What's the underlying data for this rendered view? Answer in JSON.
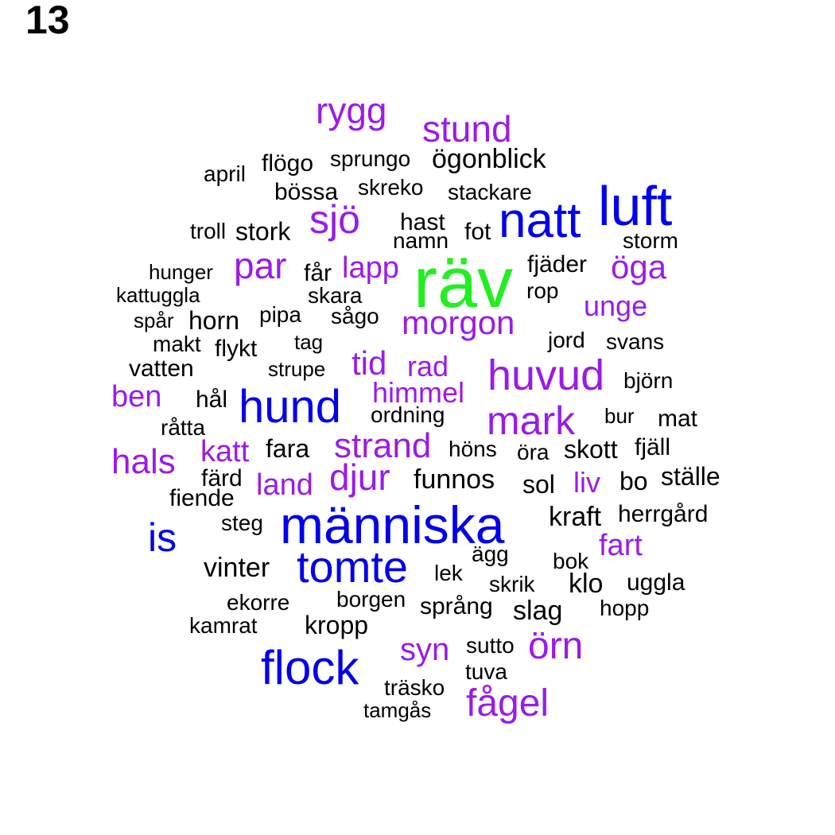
{
  "page_number": "13",
  "colors": {
    "green": "#22ee22",
    "blue": "#0000ee",
    "purple": "#9a1be8",
    "black": "#000000"
  },
  "words": [
    {
      "text": "räv",
      "color": "green"
    },
    {
      "text": "människa",
      "color": "blue"
    },
    {
      "text": "luft",
      "color": "blue"
    },
    {
      "text": "natt",
      "color": "blue"
    },
    {
      "text": "hund",
      "color": "blue"
    },
    {
      "text": "flock",
      "color": "blue"
    },
    {
      "text": "tomte",
      "color": "blue"
    },
    {
      "text": "is",
      "color": "blue"
    },
    {
      "text": "huvud",
      "color": "purple"
    },
    {
      "text": "mark",
      "color": "purple"
    },
    {
      "text": "djur",
      "color": "purple"
    },
    {
      "text": "strand",
      "color": "purple"
    },
    {
      "text": "morgon",
      "color": "purple"
    },
    {
      "text": "fågel",
      "color": "purple"
    },
    {
      "text": "örn",
      "color": "purple"
    },
    {
      "text": "sjö",
      "color": "purple"
    },
    {
      "text": "par",
      "color": "purple"
    },
    {
      "text": "stund",
      "color": "purple"
    },
    {
      "text": "rygg",
      "color": "purple"
    },
    {
      "text": "öga",
      "color": "purple"
    },
    {
      "text": "hals",
      "color": "purple"
    },
    {
      "text": "ben",
      "color": "purple"
    },
    {
      "text": "lapp",
      "color": "purple"
    },
    {
      "text": "tid",
      "color": "purple"
    },
    {
      "text": "land",
      "color": "purple"
    },
    {
      "text": "himmel",
      "color": "purple"
    },
    {
      "text": "katt",
      "color": "purple"
    },
    {
      "text": "unge",
      "color": "purple"
    },
    {
      "text": "rad",
      "color": "purple"
    },
    {
      "text": "syn",
      "color": "purple"
    },
    {
      "text": "fart",
      "color": "purple"
    },
    {
      "text": "liv",
      "color": "purple"
    },
    {
      "text": "ögonblick",
      "color": "black"
    },
    {
      "text": "april",
      "color": "black"
    },
    {
      "text": "flögo",
      "color": "black"
    },
    {
      "text": "sprungo",
      "color": "black"
    },
    {
      "text": "bössa",
      "color": "black"
    },
    {
      "text": "skreko",
      "color": "black"
    },
    {
      "text": "stackare",
      "color": "black"
    },
    {
      "text": "troll",
      "color": "black"
    },
    {
      "text": "stork",
      "color": "black"
    },
    {
      "text": "hast",
      "color": "black"
    },
    {
      "text": "namn",
      "color": "black"
    },
    {
      "text": "fot",
      "color": "black"
    },
    {
      "text": "storm",
      "color": "black"
    },
    {
      "text": "hunger",
      "color": "black"
    },
    {
      "text": "får",
      "color": "black"
    },
    {
      "text": "fjäder",
      "color": "black"
    },
    {
      "text": "kattuggla",
      "color": "black"
    },
    {
      "text": "skara",
      "color": "black"
    },
    {
      "text": "rop",
      "color": "black"
    },
    {
      "text": "spår",
      "color": "black"
    },
    {
      "text": "horn",
      "color": "black"
    },
    {
      "text": "pipa",
      "color": "black"
    },
    {
      "text": "sågo",
      "color": "black"
    },
    {
      "text": "makt",
      "color": "black"
    },
    {
      "text": "flykt",
      "color": "black"
    },
    {
      "text": "tag",
      "color": "black"
    },
    {
      "text": "jord",
      "color": "black"
    },
    {
      "text": "svans",
      "color": "black"
    },
    {
      "text": "vatten",
      "color": "black"
    },
    {
      "text": "strupe",
      "color": "black"
    },
    {
      "text": "björn",
      "color": "black"
    },
    {
      "text": "hål",
      "color": "black"
    },
    {
      "text": "ordning",
      "color": "black"
    },
    {
      "text": "bur",
      "color": "black"
    },
    {
      "text": "mat",
      "color": "black"
    },
    {
      "text": "råtta",
      "color": "black"
    },
    {
      "text": "fara",
      "color": "black"
    },
    {
      "text": "höns",
      "color": "black"
    },
    {
      "text": "öra",
      "color": "black"
    },
    {
      "text": "skott",
      "color": "black"
    },
    {
      "text": "fjäll",
      "color": "black"
    },
    {
      "text": "färd",
      "color": "black"
    },
    {
      "text": "funnos",
      "color": "black"
    },
    {
      "text": "sol",
      "color": "black"
    },
    {
      "text": "bo",
      "color": "black"
    },
    {
      "text": "ställe",
      "color": "black"
    },
    {
      "text": "fiende",
      "color": "black"
    },
    {
      "text": "steg",
      "color": "black"
    },
    {
      "text": "kraft",
      "color": "black"
    },
    {
      "text": "herrgård",
      "color": "black"
    },
    {
      "text": "ägg",
      "color": "black"
    },
    {
      "text": "vinter",
      "color": "black"
    },
    {
      "text": "lek",
      "color": "black"
    },
    {
      "text": "bok",
      "color": "black"
    },
    {
      "text": "skrik",
      "color": "black"
    },
    {
      "text": "klo",
      "color": "black"
    },
    {
      "text": "uggla",
      "color": "black"
    },
    {
      "text": "ekorre",
      "color": "black"
    },
    {
      "text": "borgen",
      "color": "black"
    },
    {
      "text": "språng",
      "color": "black"
    },
    {
      "text": "hopp",
      "color": "black"
    },
    {
      "text": "slag",
      "color": "black"
    },
    {
      "text": "kamrat",
      "color": "black"
    },
    {
      "text": "kropp",
      "color": "black"
    },
    {
      "text": "sutto",
      "color": "black"
    },
    {
      "text": "tuva",
      "color": "black"
    },
    {
      "text": "träsko",
      "color": "black"
    },
    {
      "text": "tamgås",
      "color": "black"
    }
  ]
}
